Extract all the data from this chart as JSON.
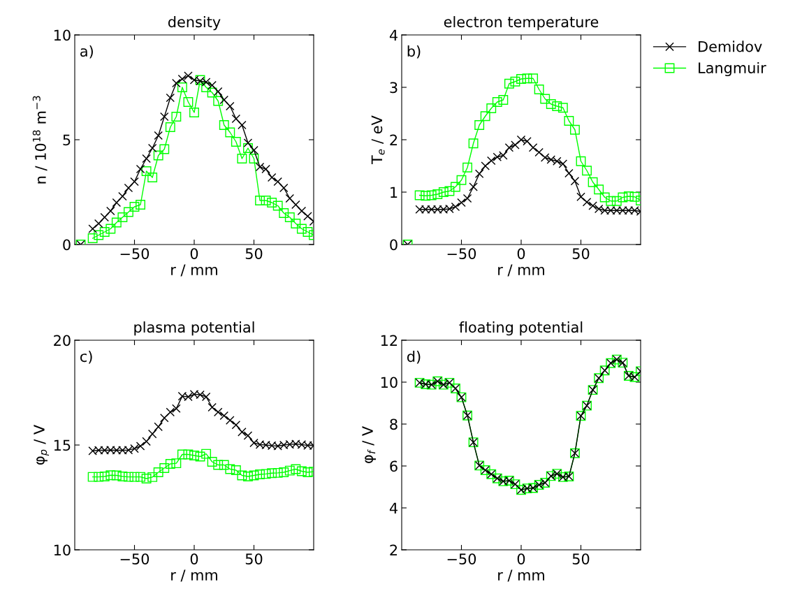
{
  "chart_data": [
    {
      "type": "line",
      "title": "density",
      "xlabel": "r / mm",
      "ylabel": "n / 10$^{18}$ m$^{−3}$",
      "annotations": [
        "a)"
      ],
      "x": [
        -95,
        -90,
        -85,
        -80,
        -75,
        -70,
        -65,
        -60,
        -55,
        -50,
        -45,
        -40,
        -35,
        -30,
        -25,
        -20,
        -15,
        -10,
        -5,
        0,
        5,
        10,
        15,
        20,
        25,
        30,
        35,
        40,
        45,
        50,
        55,
        60,
        65,
        70,
        75,
        80,
        85,
        90,
        95,
        100
      ],
      "series": [
        {
          "color": "#000000",
          "marker": "cross",
          "values": [
            0,
            null,
            0.75,
            1.0,
            1.3,
            1.6,
            2.0,
            2.3,
            2.7,
            3.0,
            3.6,
            4.1,
            4.6,
            5.2,
            6.1,
            7.0,
            7.7,
            7.9,
            8.05,
            7.85,
            7.8,
            7.75,
            7.6,
            7.3,
            6.9,
            6.6,
            6.0,
            5.7,
            4.85,
            4.5,
            3.7,
            3.6,
            3.2,
            3.0,
            2.7,
            2.2,
            1.9,
            1.6,
            1.35,
            1.1
          ]
        },
        {
          "color": "#00ff00",
          "marker": "square",
          "values": [
            0,
            null,
            0.3,
            0.45,
            0.6,
            0.75,
            1.05,
            1.3,
            1.55,
            1.8,
            1.9,
            3.5,
            3.2,
            4.25,
            4.55,
            5.6,
            6.1,
            7.5,
            6.8,
            6.3,
            7.85,
            7.5,
            7.25,
            6.85,
            5.7,
            5.35,
            4.9,
            4.1,
            4.6,
            4.1,
            2.1,
            2.1,
            2.0,
            1.85,
            1.5,
            1.3,
            1.0,
            0.75,
            0.6,
            0.45
          ]
        }
      ],
      "xlim": [
        -100,
        100
      ],
      "xticks": [
        -50,
        0,
        50
      ],
      "ylim": [
        0,
        10
      ],
      "yticks": [
        0,
        5,
        10
      ]
    },
    {
      "type": "line",
      "title": "electron temperature",
      "xlabel": "r / mm",
      "ylabel": "T$_{e}$ / eV",
      "annotations": [
        "b)"
      ],
      "legend": "top right",
      "x": [
        -95,
        -90,
        -85,
        -80,
        -75,
        -70,
        -65,
        -60,
        -55,
        -50,
        -45,
        -40,
        -35,
        -30,
        -25,
        -20,
        -15,
        -10,
        -5,
        0,
        5,
        10,
        15,
        20,
        25,
        30,
        35,
        40,
        45,
        50,
        55,
        60,
        65,
        70,
        75,
        80,
        85,
        90,
        95,
        100
      ],
      "series": [
        {
          "name": "Demidov",
          "color": "#000000",
          "marker": "cross",
          "values": [
            0,
            null,
            0.67,
            0.67,
            0.67,
            0.67,
            0.67,
            0.68,
            0.72,
            0.8,
            0.88,
            1.1,
            1.35,
            1.5,
            1.6,
            1.67,
            1.7,
            1.85,
            1.9,
            2.0,
            1.97,
            1.85,
            1.76,
            1.66,
            1.62,
            1.59,
            1.54,
            1.36,
            1.21,
            0.91,
            0.81,
            0.74,
            0.68,
            0.65,
            0.65,
            0.65,
            0.65,
            0.65,
            0.65,
            0.63
          ]
        },
        {
          "name": "Langmuir",
          "color": "#00ff00",
          "marker": "square",
          "values": [
            0,
            null,
            0.94,
            0.93,
            0.94,
            0.96,
            1.0,
            1.02,
            1.1,
            1.23,
            1.47,
            1.93,
            2.28,
            2.45,
            2.6,
            2.72,
            2.76,
            3.07,
            3.11,
            3.16,
            3.17,
            3.17,
            2.96,
            2.78,
            2.68,
            2.64,
            2.61,
            2.36,
            2.19,
            1.59,
            1.41,
            1.19,
            1.05,
            0.9,
            0.83,
            0.83,
            0.9,
            0.92,
            0.91,
            0.84
          ]
        }
      ],
      "xlim": [
        -100,
        100
      ],
      "xticks": [
        -50,
        0,
        50
      ],
      "ylim": [
        0,
        4
      ],
      "yticks": [
        0,
        1,
        2,
        3,
        4
      ]
    },
    {
      "type": "line",
      "title": "plasma potential",
      "xlabel": "r / mm",
      "ylabel": "φ$_{p}$ / V",
      "annotations": [
        "c)"
      ],
      "x": [
        -85,
        -80,
        -75,
        -70,
        -65,
        -60,
        -55,
        -50,
        -45,
        -40,
        -35,
        -30,
        -25,
        -20,
        -15,
        -10,
        -5,
        0,
        5,
        10,
        15,
        20,
        25,
        30,
        35,
        40,
        45,
        50,
        55,
        60,
        65,
        70,
        75,
        80,
        85,
        90,
        95,
        100
      ],
      "series": [
        {
          "color": "#000000",
          "marker": "cross",
          "values": [
            14.72,
            14.75,
            14.75,
            14.76,
            14.75,
            14.75,
            14.76,
            14.83,
            14.95,
            15.17,
            15.53,
            15.87,
            16.29,
            16.57,
            16.74,
            17.33,
            17.3,
            17.42,
            17.4,
            17.3,
            16.8,
            16.57,
            16.4,
            16.18,
            15.96,
            15.62,
            15.45,
            15.1,
            15.02,
            15.0,
            14.97,
            14.95,
            15.0,
            15.03,
            15.05,
            15.02,
            14.98,
            14.97
          ]
        },
        {
          "color": "#00ff00",
          "marker": "square",
          "values": [
            13.48,
            13.48,
            13.5,
            13.56,
            13.55,
            13.5,
            13.48,
            13.48,
            13.48,
            13.4,
            13.47,
            13.7,
            13.9,
            14.1,
            14.13,
            14.55,
            14.55,
            14.5,
            14.45,
            14.58,
            14.2,
            14.05,
            14.05,
            13.85,
            13.8,
            13.55,
            13.5,
            13.55,
            13.6,
            13.62,
            13.66,
            13.67,
            13.7,
            13.78,
            13.85,
            13.75,
            13.7,
            13.73
          ]
        }
      ],
      "xlim": [
        -100,
        100
      ],
      "xticks": [
        -50,
        0,
        50
      ],
      "ylim": [
        10,
        20
      ],
      "yticks": [
        10,
        15,
        20
      ]
    },
    {
      "type": "line",
      "title": "floating potential",
      "xlabel": "r / mm",
      "ylabel": "φ$_{f}$ / V",
      "annotations": [
        "d)"
      ],
      "x": [
        -85,
        -80,
        -75,
        -70,
        -65,
        -60,
        -55,
        -50,
        -45,
        -40,
        -35,
        -30,
        -25,
        -20,
        -15,
        -10,
        -5,
        0,
        5,
        10,
        15,
        20,
        25,
        30,
        35,
        40,
        45,
        50,
        55,
        60,
        65,
        70,
        75,
        80,
        85,
        90,
        95,
        100
      ],
      "series": [
        {
          "color": "#000000",
          "marker": "cross",
          "values": [
            9.97,
            9.9,
            9.88,
            10.04,
            9.88,
            9.97,
            9.7,
            9.28,
            8.41,
            7.13,
            6.02,
            5.8,
            5.61,
            5.41,
            5.27,
            5.3,
            5.13,
            4.86,
            4.93,
            4.95,
            5.1,
            5.2,
            5.52,
            5.63,
            5.47,
            5.5,
            6.61,
            8.39,
            8.88,
            9.63,
            10.19,
            10.56,
            10.91,
            11.08,
            10.93,
            10.3,
            10.24,
            10.52
          ]
        },
        {
          "color": "#00ff00",
          "marker": "square",
          "values": [
            9.97,
            9.9,
            9.88,
            10.04,
            9.88,
            9.97,
            9.7,
            9.28,
            8.41,
            7.13,
            6.02,
            5.8,
            5.61,
            5.41,
            5.27,
            5.3,
            5.13,
            4.86,
            4.93,
            4.95,
            5.1,
            5.2,
            5.52,
            5.63,
            5.47,
            5.5,
            6.61,
            8.39,
            8.88,
            9.63,
            10.19,
            10.56,
            10.91,
            11.08,
            10.93,
            10.3,
            10.24,
            10.52
          ]
        }
      ],
      "xlim": [
        -100,
        100
      ],
      "xticks": [
        -50,
        0,
        50
      ],
      "ylim": [
        2,
        12
      ],
      "yticks": [
        2,
        4,
        6,
        8,
        10,
        12
      ]
    }
  ]
}
